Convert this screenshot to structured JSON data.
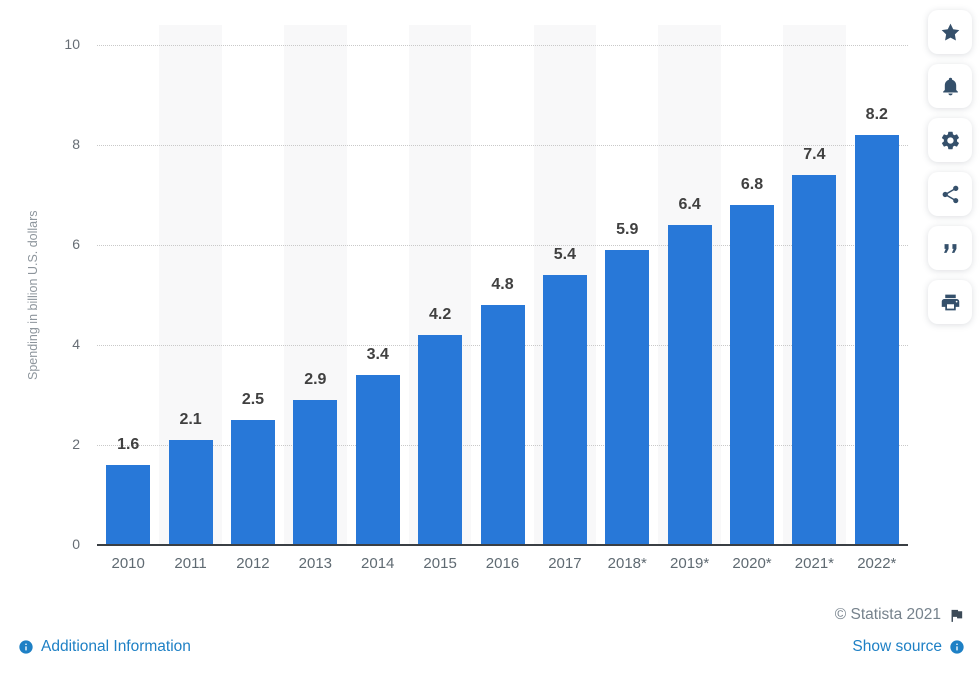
{
  "chart_data": {
    "type": "bar",
    "categories": [
      "2010",
      "2011",
      "2012",
      "2013",
      "2014",
      "2015",
      "2016",
      "2017",
      "2018*",
      "2019*",
      "2020*",
      "2021*",
      "2022*"
    ],
    "values": [
      1.6,
      2.1,
      2.5,
      2.9,
      3.4,
      4.2,
      4.8,
      5.4,
      5.9,
      6.4,
      6.8,
      7.4,
      8.2
    ],
    "title": "",
    "xlabel": "",
    "ylabel": "Spending in billion U.S. dollars",
    "ylim": [
      0,
      10
    ],
    "yticks": [
      0,
      2,
      4,
      6,
      8,
      10
    ],
    "grid": "horizontal-dotted",
    "legend": "none",
    "alternating_bands": true,
    "bar_color": "#2878d8",
    "band_color": "#f8f8f9"
  },
  "toolbar": {
    "buttons": [
      {
        "label": "favorite",
        "icon": "star-icon"
      },
      {
        "label": "notifications",
        "icon": "bell-icon"
      },
      {
        "label": "settings",
        "icon": "gear-icon"
      },
      {
        "label": "share",
        "icon": "share-icon"
      },
      {
        "label": "cite",
        "icon": "quote-icon"
      },
      {
        "label": "print",
        "icon": "print-icon"
      }
    ]
  },
  "footer": {
    "copyright": "© Statista 2021",
    "additional_info_label": "Additional Information",
    "show_source_label": "Show source"
  },
  "colors": {
    "bar": "#2878d8",
    "link": "#1e80c5",
    "rail_icon": "#35506b",
    "axis_line": "#3a3f44",
    "value_label": "#404040"
  }
}
